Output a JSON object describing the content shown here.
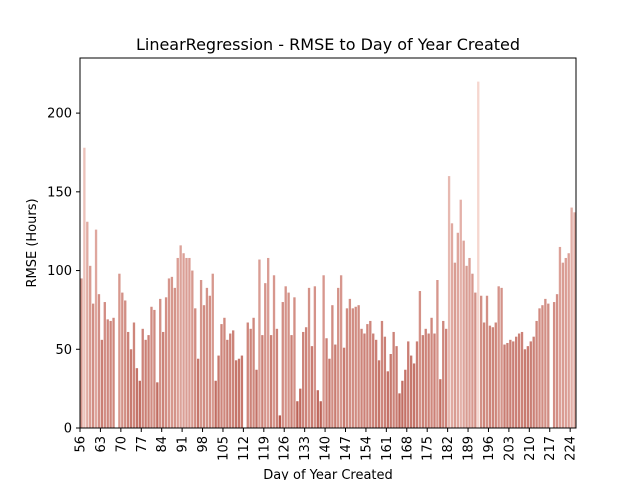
{
  "chart_data": {
    "type": "bar",
    "title": "LinearRegression - RMSE to Day of Year Created",
    "xlabel": "Day of Year Created",
    "ylabel": "RMSE (Hours)",
    "xlim": [
      56,
      226
    ],
    "ylim": [
      0,
      235
    ],
    "xticks": [
      56,
      63,
      70,
      77,
      84,
      91,
      98,
      105,
      112,
      119,
      126,
      133,
      140,
      147,
      154,
      161,
      168,
      175,
      182,
      189,
      196,
      203,
      210,
      217,
      224
    ],
    "yticks": [
      0,
      50,
      100,
      150,
      200
    ],
    "grid": false,
    "bar_color_low": "#b85a4e",
    "bar_color_high": "#f6d6cf",
    "x": [
      56,
      57,
      58,
      59,
      60,
      61,
      62,
      63,
      64,
      65,
      66,
      67,
      68,
      69,
      70,
      71,
      72,
      73,
      74,
      75,
      76,
      77,
      78,
      79,
      80,
      81,
      82,
      83,
      84,
      85,
      86,
      87,
      88,
      89,
      90,
      91,
      92,
      93,
      94,
      95,
      96,
      97,
      98,
      99,
      100,
      101,
      102,
      103,
      104,
      105,
      106,
      107,
      108,
      109,
      110,
      111,
      112,
      113,
      114,
      115,
      116,
      117,
      118,
      119,
      120,
      121,
      122,
      123,
      124,
      125,
      126,
      127,
      128,
      129,
      130,
      131,
      132,
      133,
      134,
      135,
      136,
      137,
      138,
      139,
      140,
      141,
      142,
      143,
      144,
      145,
      146,
      147,
      148,
      149,
      150,
      151,
      152,
      153,
      154,
      155,
      156,
      157,
      158,
      159,
      160,
      161,
      162,
      163,
      164,
      165,
      166,
      167,
      168,
      169,
      170,
      171,
      172,
      173,
      174,
      175,
      176,
      177,
      178,
      179,
      180,
      181,
      182,
      183,
      184,
      185,
      186,
      187,
      188,
      189,
      190,
      191,
      192,
      193,
      194,
      195,
      196,
      197,
      198,
      199,
      200,
      201,
      202,
      203,
      204,
      205,
      206,
      207,
      208,
      209,
      210,
      211,
      212,
      213,
      214,
      215,
      216,
      217,
      218,
      219,
      220,
      221,
      222,
      223,
      224,
      225
    ],
    "values": [
      95,
      178,
      131,
      103,
      79,
      126,
      85,
      56,
      80,
      69,
      68,
      70,
      0,
      98,
      86,
      81,
      61,
      50,
      67,
      38,
      30,
      63,
      56,
      59,
      77,
      75,
      29,
      82,
      61,
      83,
      95,
      96,
      89,
      108,
      116,
      111,
      108,
      108,
      100,
      76,
      44,
      94,
      78,
      89,
      84,
      98,
      30,
      46,
      66,
      70,
      56,
      60,
      62,
      43,
      44,
      46,
      0,
      67,
      63,
      70,
      37,
      107,
      59,
      92,
      108,
      59,
      97,
      63,
      8,
      80,
      90,
      86,
      59,
      83,
      17,
      25,
      61,
      64,
      89,
      52,
      90,
      24,
      17,
      97,
      57,
      44,
      78,
      53,
      89,
      97,
      51,
      76,
      82,
      76,
      77,
      78,
      63,
      60,
      66,
      68,
      60,
      56,
      43,
      68,
      58,
      36,
      47,
      61,
      52,
      22,
      30,
      37,
      55,
      46,
      41,
      55,
      87,
      59,
      63,
      60,
      70,
      60,
      94,
      31,
      68,
      63,
      160,
      130,
      105,
      124,
      145,
      119,
      103,
      108,
      98,
      86,
      220,
      84,
      67,
      84,
      65,
      64,
      67,
      90,
      89,
      53,
      54,
      56,
      55,
      58,
      60,
      61,
      50,
      52,
      55,
      58,
      68,
      76,
      78,
      82,
      79,
      0,
      80,
      85,
      115,
      105,
      108,
      111,
      140,
      137
    ]
  }
}
